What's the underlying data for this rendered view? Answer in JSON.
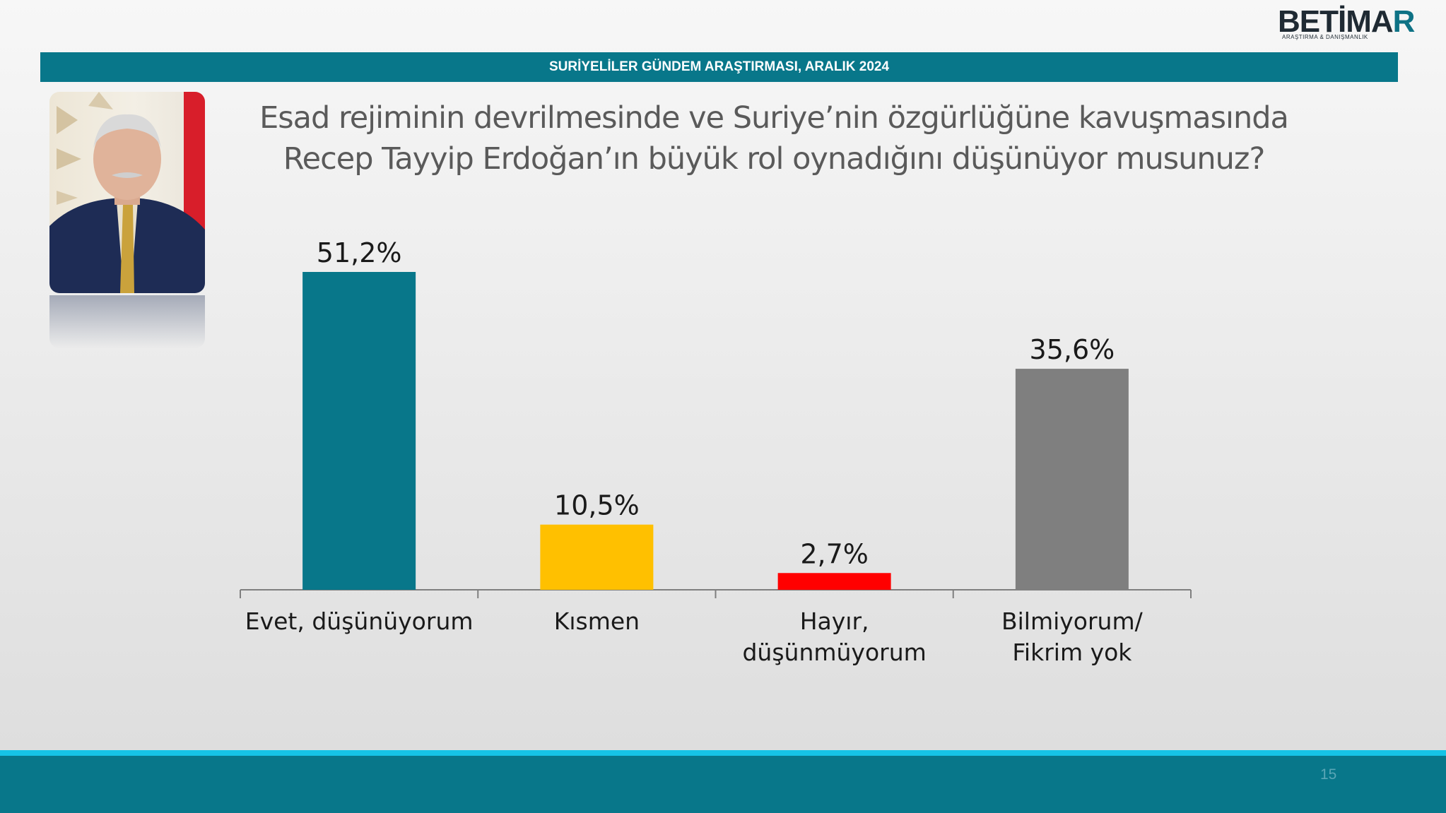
{
  "logo": {
    "word_main": "BETİMA",
    "word_accent": "R",
    "tagline": "ARAŞTIRMA & DANIŞMANLIK"
  },
  "header": {
    "title": "SURİYELİLER GÜNDEM ARAŞTIRMASI, ARALIK 2024"
  },
  "question": {
    "line1": "Esad rejiminin devrilmesinde ve Suriye’nin özgürlüğüne kavuşmasında",
    "line2": "Recep Tayyip Erdoğan’ın büyük rol oynadığını düşünüyor musunuz?"
  },
  "page_number": "15",
  "colors": {
    "brand": "#08778a",
    "accent_line": "#16c3e6",
    "bar_evet": "#08778a",
    "bar_kismen": "#ffc000",
    "bar_hayir": "#ff0000",
    "bar_bilmiyorum": "#7f7f7f"
  },
  "chart_data": {
    "type": "bar",
    "categories": [
      [
        "Evet, düşünüyorum"
      ],
      [
        "Kısmen"
      ],
      [
        "Hayır,",
        "düşünmüyorum"
      ],
      [
        "Bilmiyorum/",
        "Fikrim yok"
      ]
    ],
    "values": [
      51.2,
      10.5,
      2.7,
      35.6
    ],
    "value_labels": [
      "51,2%",
      "10,5%",
      "2,7%",
      "35,6%"
    ],
    "bar_colors": [
      "#08778a",
      "#ffc000",
      "#ff0000",
      "#7f7f7f"
    ],
    "ylim": [
      0,
      60
    ],
    "grid": false,
    "legend": "none"
  }
}
